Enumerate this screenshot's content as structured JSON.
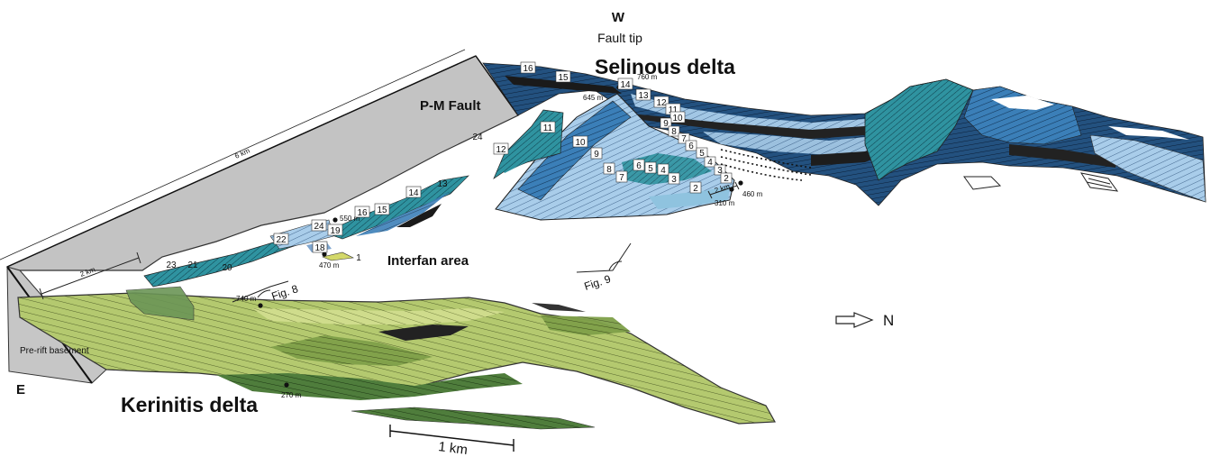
{
  "compass": {
    "west": "W",
    "east": "E",
    "north": "N"
  },
  "titles": {
    "fault_tip": "Fault tip",
    "selinous": "Selinous delta",
    "kerinitis": "Kerinitis delta",
    "pm_fault": "P-M Fault",
    "interfan": "Interfan area",
    "basement": "Pre-rift basement"
  },
  "figure_refs": {
    "fig8": "Fig. 8",
    "fig9": "Fig. 9"
  },
  "elevations": {
    "e760": "760 m",
    "e645": "645 m",
    "e460": "460 m",
    "e310": "310 m",
    "e550": "550 m",
    "e470": "470 m",
    "e740": "740 m",
    "e270": "270 m"
  },
  "scales": {
    "six_km": "6 km",
    "two_km_left": "2 km",
    "two_km_right": "2 km",
    "one_km": "1 km"
  },
  "unit_labels": {
    "upper": [
      "16",
      "15",
      "14",
      "13",
      "12",
      "11",
      "10",
      "9",
      "8",
      "7",
      "6",
      "5",
      "4",
      "3",
      "2"
    ],
    "front": [
      "10",
      "9",
      "8",
      "7",
      "6",
      "5",
      "4",
      "3",
      "2"
    ],
    "mid": [
      "11",
      "12",
      "24",
      "13",
      "14",
      "15",
      "16"
    ],
    "left": [
      "24",
      "19",
      "22",
      "18",
      "20",
      "21",
      "23",
      "1"
    ]
  },
  "colors": {
    "pale_blue": "#9ec5e6",
    "mid_blue": "#2f6fa8",
    "dark_blue": "#1d3f6e",
    "teal": "#2c8c9c",
    "dark": "#2a2a2a",
    "kerinitis_green": "#b2c86e",
    "gray_panel": "#c3c3c3"
  }
}
